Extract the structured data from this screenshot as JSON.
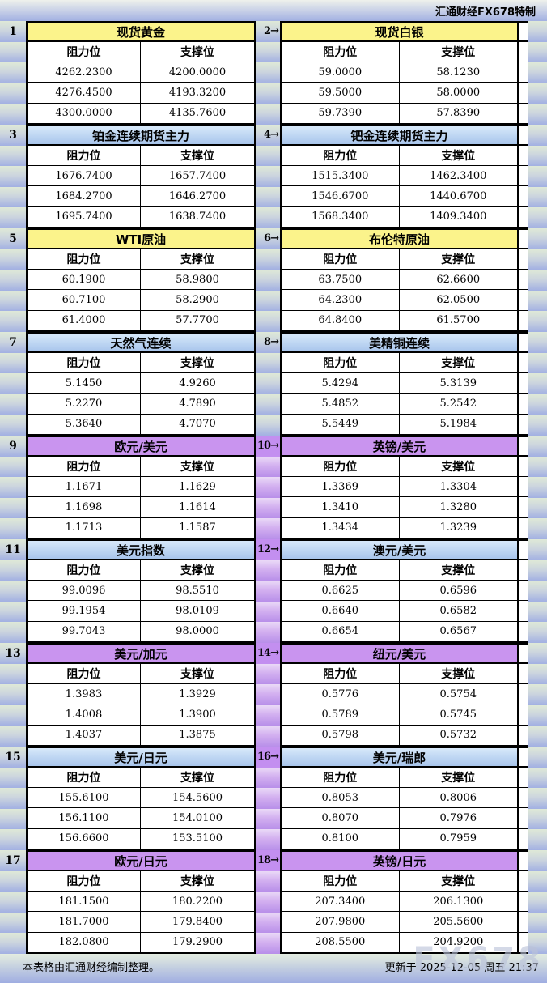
{
  "header": {
    "brand": "汇通财经FX678特制"
  },
  "labels": {
    "resistance": "阻力位",
    "support": "支撑位"
  },
  "footer": {
    "source_note": "本表格由汇通财经编制整理。",
    "updated": "更新于 2025-12-05 周五 21:37"
  },
  "watermark": "FX678",
  "colors": {
    "title_yellow": "#fbf38b",
    "title_blue_top": "#d7e9fa",
    "title_blue_bottom": "#a8c5ec",
    "title_purple": "#c994ef",
    "gutter_purple": "#b88fe9",
    "background_top": "#dfe9d7",
    "background_bottom": "#a2b0e2"
  },
  "sections": [
    {
      "left_num": "1",
      "right_num": "2→",
      "theme": "yellow",
      "gutter_purple": false,
      "left": {
        "title": "现货黄金",
        "rows": [
          {
            "r": "4262.2300",
            "s": "4200.0000"
          },
          {
            "r": "4276.4500",
            "s": "4193.3200"
          },
          {
            "r": "4300.0000",
            "s": "4135.7600"
          }
        ]
      },
      "right": {
        "title": "现货白银",
        "rows": [
          {
            "r": "59.0000",
            "s": "58.1230"
          },
          {
            "r": "59.5000",
            "s": "58.0000"
          },
          {
            "r": "59.7390",
            "s": "57.8390"
          }
        ]
      }
    },
    {
      "left_num": "3",
      "right_num": "4→",
      "theme": "blue",
      "gutter_purple": false,
      "left": {
        "title": "铂金连续期货主力",
        "rows": [
          {
            "r": "1676.7400",
            "s": "1657.7400"
          },
          {
            "r": "1684.2700",
            "s": "1646.2700"
          },
          {
            "r": "1695.7400",
            "s": "1638.7400"
          }
        ]
      },
      "right": {
        "title": "钯金连续期货主力",
        "rows": [
          {
            "r": "1515.3400",
            "s": "1462.3400"
          },
          {
            "r": "1546.6700",
            "s": "1440.6700"
          },
          {
            "r": "1568.3400",
            "s": "1409.3400"
          }
        ]
      }
    },
    {
      "left_num": "5",
      "right_num": "6→",
      "theme": "yellow",
      "gutter_purple": false,
      "left": {
        "title": "WTI原油",
        "rows": [
          {
            "r": "60.1900",
            "s": "58.9800"
          },
          {
            "r": "60.7100",
            "s": "58.2900"
          },
          {
            "r": "61.4000",
            "s": "57.7700"
          }
        ]
      },
      "right": {
        "title": "布伦特原油",
        "rows": [
          {
            "r": "63.7500",
            "s": "62.6600"
          },
          {
            "r": "64.2300",
            "s": "62.0500"
          },
          {
            "r": "64.8400",
            "s": "61.5700"
          }
        ]
      }
    },
    {
      "left_num": "7",
      "right_num": "8→",
      "theme": "blue",
      "gutter_purple": false,
      "left": {
        "title": "天然气连续",
        "rows": [
          {
            "r": "5.1450",
            "s": "4.9260"
          },
          {
            "r": "5.2270",
            "s": "4.7890"
          },
          {
            "r": "5.3640",
            "s": "4.7070"
          }
        ]
      },
      "right": {
        "title": "美精铜连续",
        "rows": [
          {
            "r": "5.4294",
            "s": "5.3139"
          },
          {
            "r": "5.4852",
            "s": "5.2542"
          },
          {
            "r": "5.5449",
            "s": "5.1984"
          }
        ]
      }
    },
    {
      "left_num": "9",
      "right_num": "10→",
      "theme": "purple",
      "gutter_purple": true,
      "left": {
        "title": "欧元/美元",
        "rows": [
          {
            "r": "1.1671",
            "s": "1.1629"
          },
          {
            "r": "1.1698",
            "s": "1.1614"
          },
          {
            "r": "1.1713",
            "s": "1.1587"
          }
        ]
      },
      "right": {
        "title": "英镑/美元",
        "rows": [
          {
            "r": "1.3369",
            "s": "1.3304"
          },
          {
            "r": "1.3410",
            "s": "1.3280"
          },
          {
            "r": "1.3434",
            "s": "1.3239"
          }
        ]
      }
    },
    {
      "left_num": "11",
      "right_num": "12→",
      "theme": "blue",
      "gutter_purple": true,
      "left": {
        "title": "美元指数",
        "rows": [
          {
            "r": "99.0096",
            "s": "98.5510"
          },
          {
            "r": "99.1954",
            "s": "98.0109"
          },
          {
            "r": "99.7043",
            "s": "98.0000"
          }
        ]
      },
      "right": {
        "title": "澳元/美元",
        "rows": [
          {
            "r": "0.6625",
            "s": "0.6596"
          },
          {
            "r": "0.6640",
            "s": "0.6582"
          },
          {
            "r": "0.6654",
            "s": "0.6567"
          }
        ]
      }
    },
    {
      "left_num": "13",
      "right_num": "14→",
      "theme": "purple",
      "gutter_purple": true,
      "left": {
        "title": "美元/加元",
        "rows": [
          {
            "r": "1.3983",
            "s": "1.3929"
          },
          {
            "r": "1.4008",
            "s": "1.3900"
          },
          {
            "r": "1.4037",
            "s": "1.3875"
          }
        ]
      },
      "right": {
        "title": "纽元/美元",
        "rows": [
          {
            "r": "0.5776",
            "s": "0.5754"
          },
          {
            "r": "0.5789",
            "s": "0.5745"
          },
          {
            "r": "0.5798",
            "s": "0.5732"
          }
        ]
      }
    },
    {
      "left_num": "15",
      "right_num": "16→",
      "theme": "blue",
      "gutter_purple": true,
      "left": {
        "title": "美元/日元",
        "rows": [
          {
            "r": "155.6100",
            "s": "154.5600"
          },
          {
            "r": "156.1100",
            "s": "154.0100"
          },
          {
            "r": "156.6600",
            "s": "153.5100"
          }
        ]
      },
      "right": {
        "title": "美元/瑞郎",
        "rows": [
          {
            "r": "0.8053",
            "s": "0.8006"
          },
          {
            "r": "0.8070",
            "s": "0.7976"
          },
          {
            "r": "0.8100",
            "s": "0.7959"
          }
        ]
      }
    },
    {
      "left_num": "17",
      "right_num": "18→",
      "theme": "purple",
      "gutter_purple": true,
      "left": {
        "title": "欧元/日元",
        "rows": [
          {
            "r": "181.1500",
            "s": "180.2200"
          },
          {
            "r": "181.7000",
            "s": "179.8400"
          },
          {
            "r": "182.0800",
            "s": "179.2900"
          }
        ]
      },
      "right": {
        "title": "英镑/日元",
        "rows": [
          {
            "r": "207.3400",
            "s": "206.1300"
          },
          {
            "r": "207.9800",
            "s": "205.5600"
          },
          {
            "r": "208.5500",
            "s": "204.9200"
          }
        ]
      }
    }
  ]
}
